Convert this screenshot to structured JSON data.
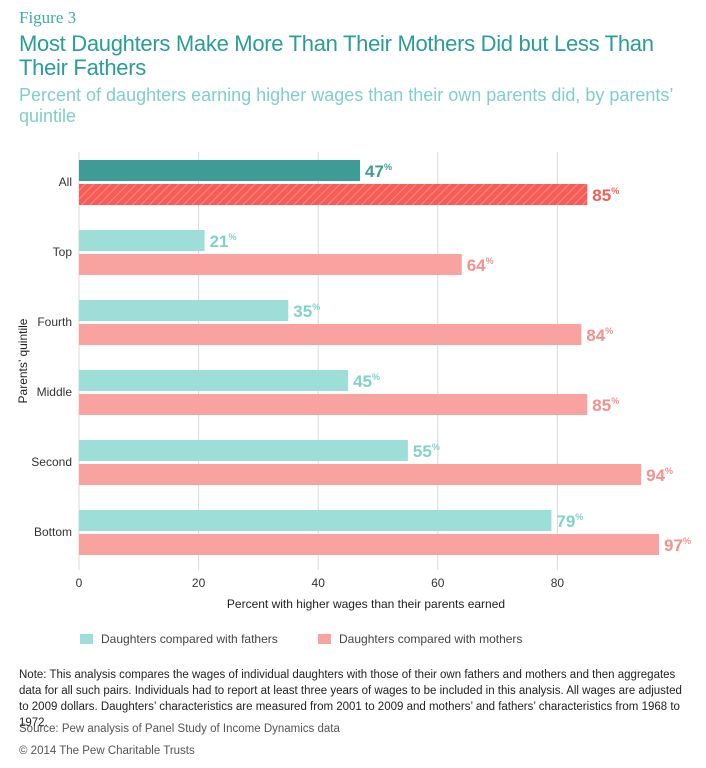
{
  "figure_label": "Figure 3",
  "title": "Most Daughters Make More Than Their Mothers Did but Less Than Their Fathers",
  "subtitle": "Percent of daughters earning higher wages than their own parents did, by parents’ quintile",
  "chart_data": {
    "type": "bar",
    "orientation": "horizontal",
    "categories": [
      "All",
      "Top",
      "Fourth",
      "Middle",
      "Second",
      "Bottom"
    ],
    "series": [
      {
        "name": "Daughters compared with fathers",
        "values": [
          47,
          21,
          35,
          45,
          55,
          79
        ],
        "color": "#9ddfd8",
        "highlight_color": "#3f9b96"
      },
      {
        "name": "Daughters compared with mothers",
        "values": [
          85,
          64,
          84,
          85,
          94,
          97
        ],
        "color": "#f9a3a0",
        "highlight_color": "#f55d56"
      }
    ],
    "highlight_category": "All",
    "value_suffix": "%",
    "xlabel": "Percent with higher wages than their parents earned",
    "ylabel": "Parents’ quintile",
    "xlim": [
      0,
      100
    ],
    "xticks": [
      0,
      20,
      40,
      60,
      80
    ],
    "grid": true,
    "legend_position": "bottom"
  },
  "note": "Note: This analysis compares the wages of individual daughters with those of their own fathers and mothers and then aggregates data for all such pairs. Individuals had to report at least three years of wages to be included in this analysis. All wages are adjusted to 2009 dollars. Daughters’ characteristics are measured from 2001 to 2009 and mothers’ and fathers’ characteristics from 1968 to 1972.",
  "source": "Source: Pew analysis of Panel Study of Income Dynamics data",
  "copyright": "© 2014 The Pew Charitable Trusts"
}
